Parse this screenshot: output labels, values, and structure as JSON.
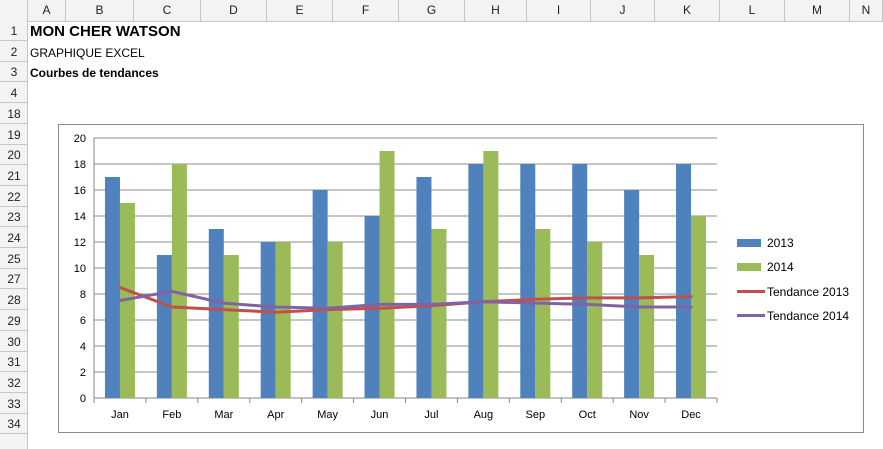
{
  "sheet": {
    "columns": [
      "A",
      "B",
      "C",
      "D",
      "E",
      "F",
      "G",
      "H",
      "I",
      "J",
      "K",
      "L",
      "M",
      "N"
    ],
    "rows": [
      "1",
      "2",
      "3",
      "4",
      "18",
      "19",
      "20",
      "21",
      "22",
      "23",
      "24",
      "25",
      "27",
      "28",
      "29",
      "30",
      "31",
      "32",
      "33",
      "34"
    ],
    "cells": {
      "a1": "MON CHER WATSON",
      "a2": "GRAPHIQUE EXCEL",
      "a3": "Courbes de tendances"
    }
  },
  "chart_data": {
    "type": "bar",
    "categories": [
      "Jan",
      "Feb",
      "Mar",
      "Apr",
      "May",
      "Jun",
      "Jul",
      "Aug",
      "Sep",
      "Oct",
      "Nov",
      "Dec"
    ],
    "series": [
      {
        "name": "2013",
        "type": "bar",
        "color": "#4f81bd",
        "values": [
          17,
          11,
          13,
          12,
          16,
          14,
          17,
          18,
          18,
          18,
          16,
          18
        ]
      },
      {
        "name": "2014",
        "type": "bar",
        "color": "#9bbb59",
        "values": [
          15,
          18,
          11,
          12,
          12,
          19,
          13,
          19,
          13,
          12,
          11,
          14
        ]
      },
      {
        "name": "Tendance 2013",
        "type": "line",
        "color": "#c0504d",
        "values": [
          8.5,
          7.0,
          6.8,
          6.6,
          6.8,
          6.9,
          7.1,
          7.4,
          7.6,
          7.7,
          7.7,
          7.8
        ]
      },
      {
        "name": "Tendance 2014",
        "type": "line",
        "color": "#8064a2",
        "values": [
          7.5,
          8.2,
          7.3,
          7.0,
          6.9,
          7.2,
          7.2,
          7.4,
          7.3,
          7.2,
          7.0,
          7.0
        ]
      }
    ],
    "ylim": [
      0,
      20
    ],
    "yticks": [
      "0",
      "2",
      "4",
      "6",
      "8",
      "10",
      "12",
      "14",
      "16",
      "18",
      "20"
    ],
    "grid": true,
    "legend": "right"
  }
}
